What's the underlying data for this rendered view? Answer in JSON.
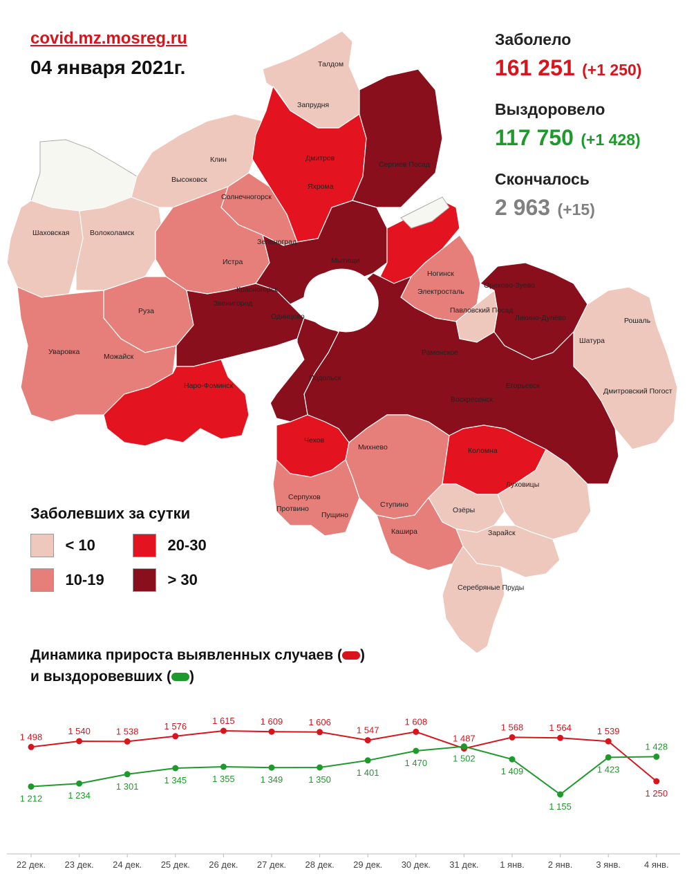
{
  "header": {
    "source": "covid.mz.mosreg.ru",
    "date": "04 января 2021г."
  },
  "stats": {
    "infected_label": "Заболело",
    "infected_value": "161 251",
    "infected_delta": "(+1 250)",
    "recovered_label": "Выздоровело",
    "recovered_value": "117 750",
    "recovered_delta": "(+1 428)",
    "deaths_label": "Скончалось",
    "deaths_value": "2 963",
    "deaths_delta": "(+15)"
  },
  "colors": {
    "infected": "#d8141c",
    "recovered": "#1e9a2c",
    "deaths": "#808080",
    "lt10": "#eec7bd",
    "c10_19": "#e67f7a",
    "c20_30": "#e3141f",
    "gt30": "#8a0f1d",
    "nodata": "#f7f7f2"
  },
  "legend": {
    "title": "Заболевших за сутки",
    "items": [
      {
        "label": "< 10",
        "color": "#eec7bd"
      },
      {
        "label": "20-30",
        "color": "#e3141f"
      },
      {
        "label": "10-19",
        "color": "#e67f7a"
      },
      {
        "label": "> 30",
        "color": "#8a0f1d"
      }
    ]
  },
  "map": {
    "labels": [
      "Талдом",
      "Запрудня",
      "Дмитров",
      "Яхрома",
      "Сергиев Посад",
      "Клин",
      "Высоковск",
      "Солнечногорск",
      "Шаховская",
      "Волоколамск",
      "Зеленоград",
      "Истра",
      "Мытищи",
      "Ногинск",
      "Электросталь",
      "Павловский Посад",
      "Орехово-Зуево",
      "Красногорск",
      "Звенигород",
      "Одинцово",
      "Ликино-Дулёво",
      "Рошаль",
      "Руза",
      "Шатура",
      "Уваровка",
      "Можайск",
      "Раменское",
      "Наро-Фоминск",
      "Подольск",
      "Воскресенск",
      "Егорьевск",
      "Дмитровский Погост",
      "Чехов",
      "Михнево",
      "Коломна",
      "Серпухов",
      "Луховицы",
      "Пущино",
      "Ступино",
      "Озёры",
      "Протвино",
      "Кашира",
      "Зарайск",
      "Серебряные Пруды"
    ]
  },
  "chart_title_line1": "Динамика прироста выявленных случаев (",
  "chart_title_line1_end": ")",
  "chart_title_line2": "и выздоровевших (",
  "chart_title_line2_end": ")",
  "chart_data": {
    "type": "line",
    "title": "Динамика прироста выявленных случаев и выздоровевших",
    "categories": [
      "22 дек.",
      "23 дек.",
      "24 дек.",
      "25 дек.",
      "26 дек.",
      "27 дек.",
      "28 дек.",
      "29 дек.",
      "30 дек.",
      "31 дек.",
      "1 янв.",
      "2 янв.",
      "3 янв.",
      "4 янв."
    ],
    "series": [
      {
        "key": "infected",
        "color": "#d8141c",
        "values": [
          1498,
          1540,
          1538,
          1576,
          1615,
          1609,
          1606,
          1547,
          1608,
          1487,
          1568,
          1564,
          1539,
          1250
        ],
        "labels": [
          "1 498",
          "1 540",
          "1 538",
          "1 576",
          "1 615",
          "1 609",
          "1 606",
          "1 547",
          "1 608",
          "1 487",
          "1 568",
          "1 564",
          "1 539",
          "1 250"
        ]
      },
      {
        "key": "recovered",
        "color": "#1e9a2c",
        "values": [
          1212,
          1234,
          1301,
          1345,
          1355,
          1349,
          1350,
          1401,
          1470,
          1502,
          1409,
          1155,
          1423,
          1428
        ],
        "labels": [
          "1 212",
          "1 234",
          "1 301",
          "1 345",
          "1 355",
          "1 349",
          "1 350",
          "1 401",
          "1 470",
          "1 502",
          "1 409",
          "1 155",
          "1 423",
          "1 428"
        ]
      }
    ],
    "ylim": [
      1100,
      1650
    ],
    "grid": false
  }
}
